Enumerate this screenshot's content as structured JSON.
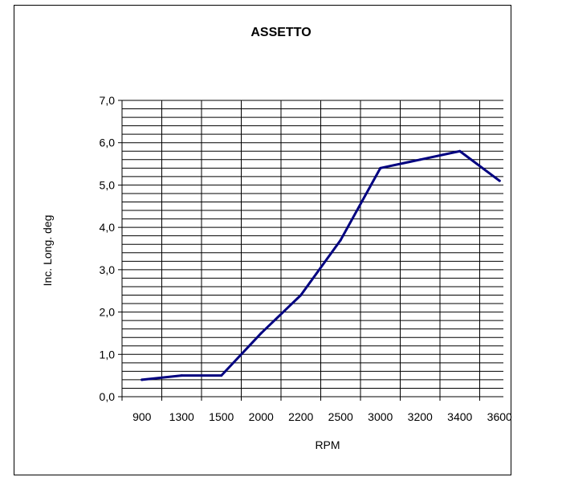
{
  "chart_data": {
    "type": "line",
    "title": "ASSETTO",
    "xlabel": "RPM",
    "ylabel": "Inc. Long. deg",
    "categories": [
      "900",
      "1300",
      "1500",
      "2000",
      "2200",
      "2500",
      "3000",
      "3200",
      "3400",
      "3600"
    ],
    "y_ticks": [
      "0,0",
      "1,0",
      "2,0",
      "3,0",
      "4,0",
      "5,0",
      "6,0",
      "7,0"
    ],
    "ylim": [
      0,
      7
    ],
    "y_minor_step": 0.2,
    "grid": true,
    "series": [
      {
        "values": [
          0.4,
          0.5,
          0.5,
          1.5,
          2.4,
          3.7,
          5.4,
          5.6,
          5.8,
          5.1
        ],
        "color": "#000080"
      }
    ]
  }
}
